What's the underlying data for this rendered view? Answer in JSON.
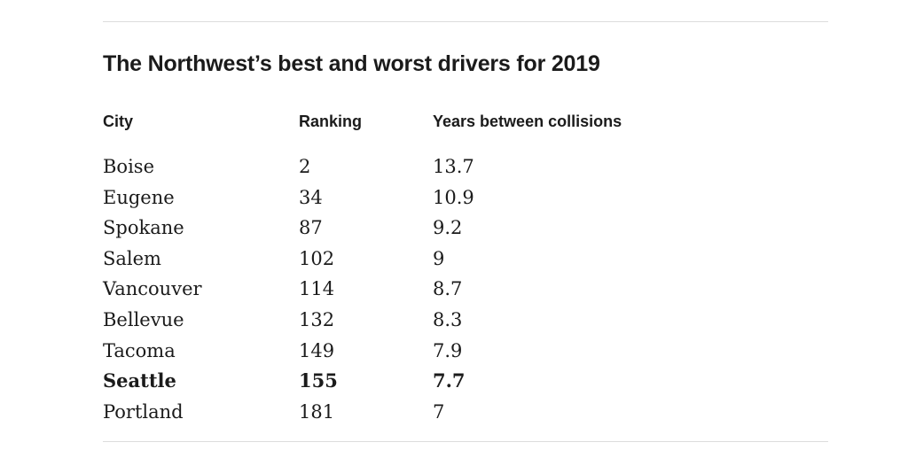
{
  "title": "The Northwest’s best and worst drivers for 2019",
  "columns": [
    "City",
    "Ranking",
    "Years between collisions"
  ],
  "rows": [
    {
      "city": "Boise",
      "ranking": "2",
      "years": "13.7"
    },
    {
      "city": "Eugene",
      "ranking": "34",
      "years": "10.9"
    },
    {
      "city": "Spokane",
      "ranking": "87",
      "years": "9.2"
    },
    {
      "city": "Salem",
      "ranking": "102",
      "years": "9"
    },
    {
      "city": "Vancouver",
      "ranking": "114",
      "years": "8.7"
    },
    {
      "city": "Bellevue",
      "ranking": "132",
      "years": "8.3"
    },
    {
      "city": "Tacoma",
      "ranking": "149",
      "years": "7.9"
    },
    {
      "city": "Seattle",
      "ranking": "155",
      "years": "7.7",
      "highlighted": true
    },
    {
      "city": "Portland",
      "ranking": "181",
      "years": "7"
    }
  ],
  "colors": {
    "text": "#1b1b1b",
    "rule": "#dcdcdc",
    "background": "#ffffff"
  }
}
